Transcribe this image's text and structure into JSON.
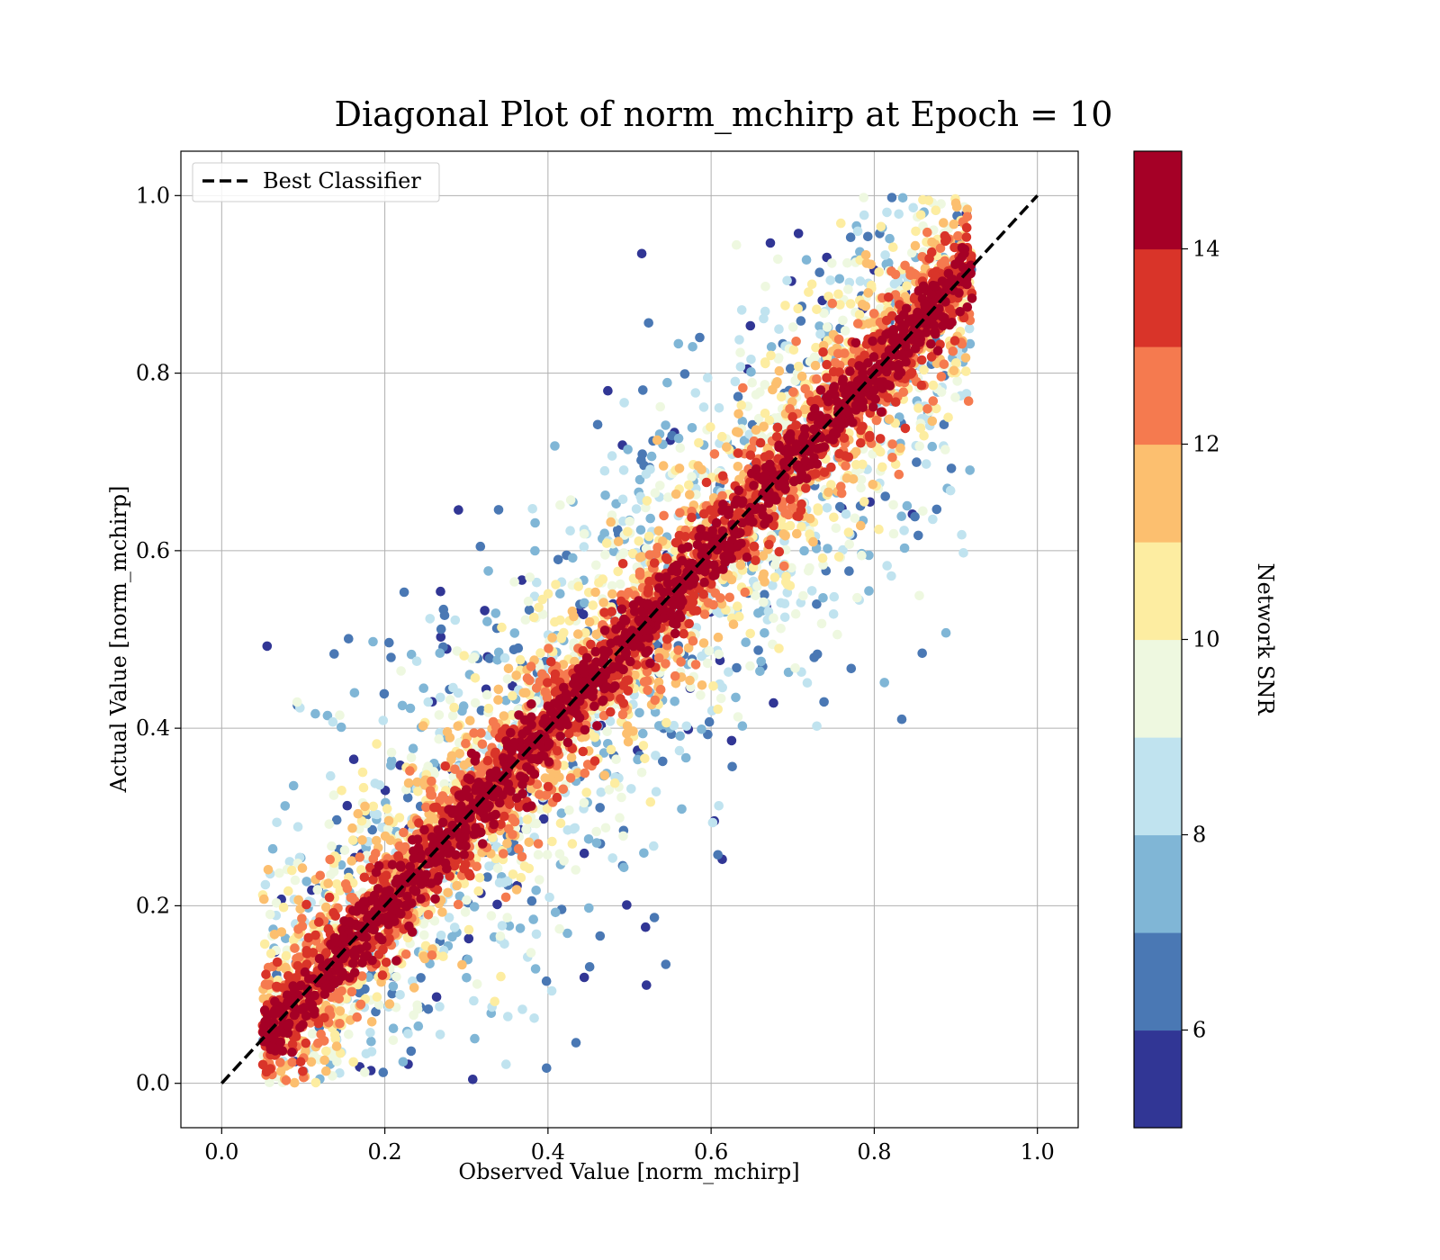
{
  "chart_data": {
    "type": "scatter",
    "title": "Diagonal Plot of norm_mchirp at Epoch = 10",
    "xlabel": "Observed Value [norm_mchirp]",
    "ylabel": "Actual Value [norm_mchirp]",
    "xlim": [
      -0.05,
      1.05
    ],
    "ylim": [
      -0.05,
      1.05
    ],
    "xticks": [
      0.0,
      0.2,
      0.4,
      0.6,
      0.8,
      1.0
    ],
    "yticks": [
      0.0,
      0.2,
      0.4,
      0.6,
      0.8,
      1.0
    ],
    "xtick_labels": [
      "0.0",
      "0.2",
      "0.4",
      "0.6",
      "0.8",
      "1.0"
    ],
    "ytick_labels": [
      "0.0",
      "0.2",
      "0.4",
      "0.6",
      "0.8",
      "1.0"
    ],
    "grid": true,
    "legend": {
      "position": "top-left",
      "entries": [
        "Best Classifier"
      ]
    },
    "reference_line": {
      "name": "Best Classifier",
      "style": "dashed",
      "color": "#000000",
      "x": [
        0.0,
        1.0
      ],
      "y": [
        0.0,
        1.0
      ]
    },
    "scatter": {
      "description": "dense cloud of points along the diagonal, coloured by Network SNR",
      "x_range": [
        0.05,
        0.92
      ],
      "y_range": [
        0.0,
        1.0
      ],
      "color_by": "Network SNR",
      "spread": "high-SNR points (red) lie close to the diagonal; low-SNR points (blue) scatter widely on both sides"
    },
    "colorbar": {
      "label": "Network SNR",
      "range": [
        5,
        15
      ],
      "ticks": [
        6,
        8,
        10,
        12,
        14
      ],
      "tick_labels": [
        "6",
        "8",
        "10",
        "12",
        "14"
      ],
      "boundaries": [
        5,
        6,
        7,
        8,
        9,
        10,
        11,
        12,
        13,
        14,
        15
      ],
      "colors": [
        "#313695",
        "#4a78b4",
        "#80b6d6",
        "#c0e3ef",
        "#eef8e0",
        "#fdeda1",
        "#fcbf6f",
        "#f57a4f",
        "#d93429",
        "#a50026"
      ]
    }
  }
}
